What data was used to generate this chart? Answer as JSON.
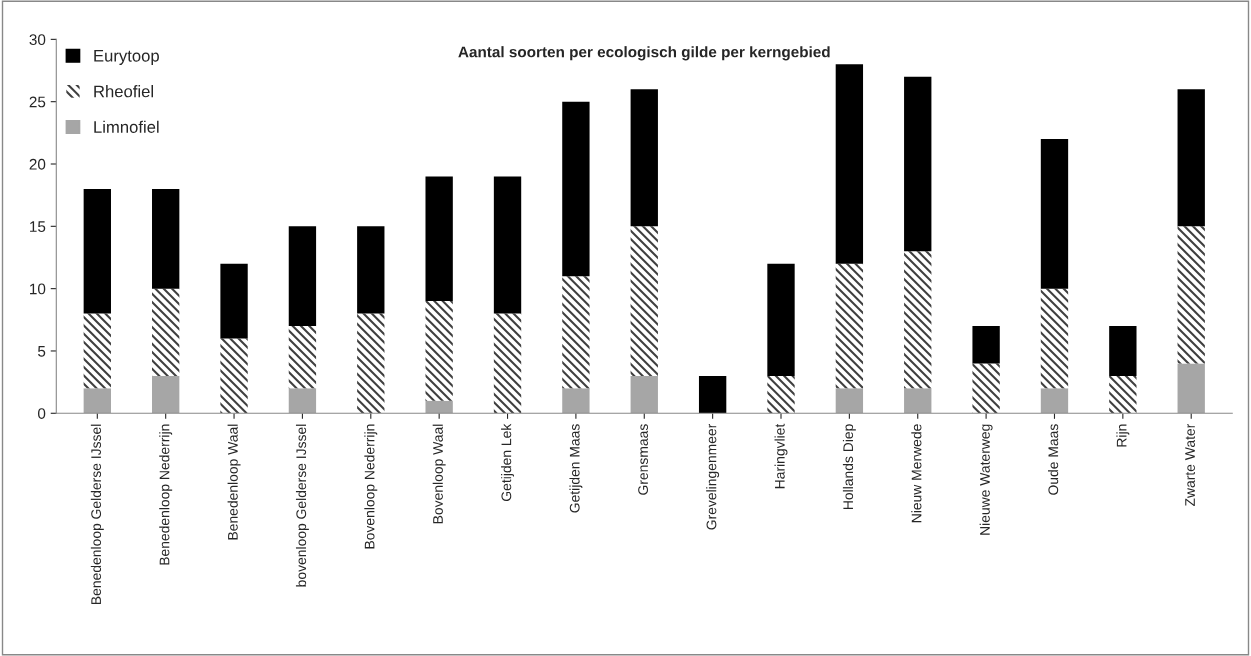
{
  "chart_data": {
    "type": "bar",
    "title": "Aantal soorten per ecologisch gilde per kerngebied",
    "categories": [
      "Benedenloop Gelderse IJssel",
      "Benedenloop Nederrijn",
      "Benedenloop Waal",
      "bovenloop Gelderse IJssel",
      "Bovenloop Nederrijn",
      "Bovenloop Waal",
      "Getijden Lek",
      "Getijden Maas",
      "Grensmaas",
      "Grevelingenmeer",
      "Haringvliet",
      "Hollands Diep",
      "Nieuw Merwede",
      "Nieuwe Waterweg",
      "Oude Maas",
      "Rijn",
      "Zwarte Water"
    ],
    "stacked": true,
    "series": [
      {
        "name": "Limnofiel",
        "color": "#a6a6a6",
        "values": [
          2,
          3,
          0,
          2,
          0,
          1,
          0,
          2,
          3,
          0,
          0,
          2,
          2,
          0,
          2,
          0,
          4
        ]
      },
      {
        "name": "Rheofiel",
        "color": "#404040",
        "values": [
          6,
          7,
          6,
          5,
          8,
          8,
          8,
          9,
          12,
          0,
          3,
          10,
          11,
          4,
          8,
          3,
          11
        ]
      },
      {
        "name": "Eurytoop",
        "color": "#000000",
        "values": [
          10,
          8,
          6,
          8,
          7,
          10,
          11,
          14,
          11,
          3,
          9,
          16,
          14,
          3,
          12,
          4,
          11
        ]
      }
    ],
    "ylim": [
      0,
      30
    ],
    "yticks": [
      0,
      5,
      10,
      15,
      20,
      25,
      30
    ],
    "grid": false,
    "legend": "top left"
  }
}
